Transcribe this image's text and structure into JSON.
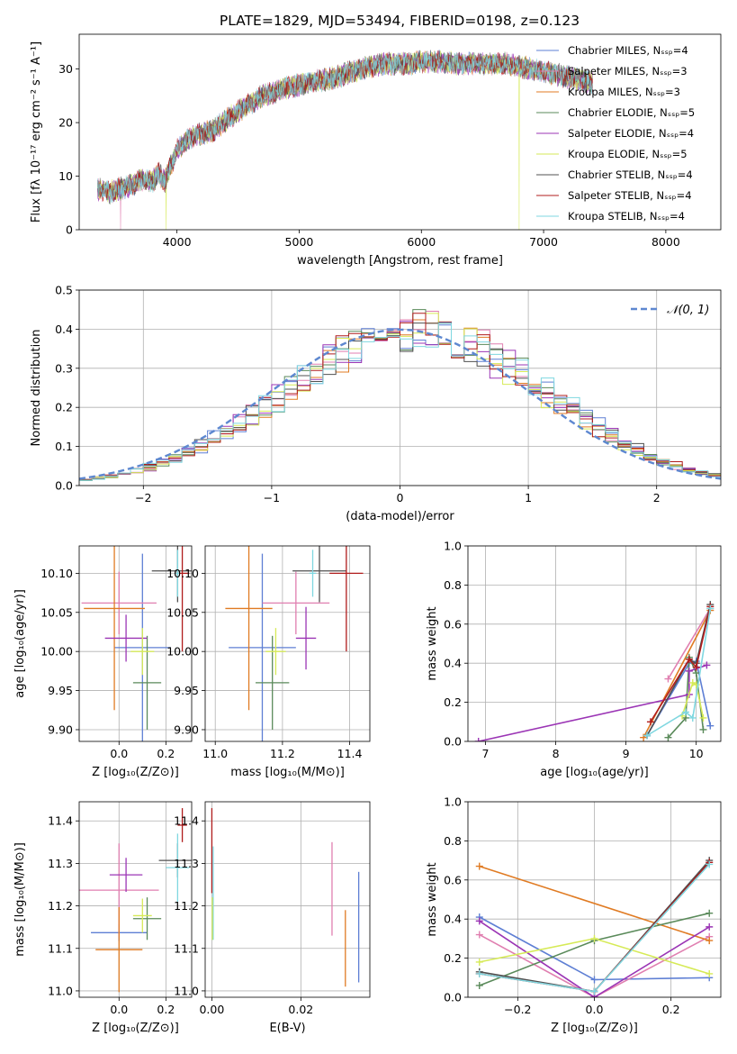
{
  "figure": {
    "title": "PLATE=1829, MJD=53494, FIBERID=0198, z=0.123"
  },
  "chart_data": [
    {
      "id": "spectrum",
      "type": "line",
      "title": "PLATE=1829, MJD=53494, FIBERID=0198, z=0.123",
      "xlabel": "wavelength [Angstrom, rest frame]",
      "ylabel": "Flux [fλ 10⁻¹⁷ erg cm⁻² s⁻¹ A⁻¹]",
      "xlim": [
        3200,
        8450
      ],
      "ylim": [
        0,
        36.5
      ],
      "xticks": [
        4000,
        5000,
        6000,
        7000,
        8000
      ],
      "yticks": [
        0,
        10,
        20,
        30
      ],
      "grid": false,
      "legend_position": "top-right",
      "series": [
        {
          "name": "Chabrier MILES, N$_{SSP}$=4",
          "color": "#5e7fd4"
        },
        {
          "name": "Salpeter MILES, N$_{SSP}$=3",
          "color": "#e07fb0"
        },
        {
          "name": "Kroupa MILES, N$_{SSP}$=3",
          "color": "#e07b23"
        },
        {
          "name": "Chabrier ELODIE, N$_{SSP}$=5",
          "color": "#5a8a5a"
        },
        {
          "name": "Salpeter ELODIE, N$_{SSP}$=4",
          "color": "#9b35b5"
        },
        {
          "name": "Kroupa ELODIE, N$_{SSP}$=5",
          "color": "#d6ea57"
        },
        {
          "name": "Chabrier STELIB, N$_{SSP}$=4",
          "color": "#505050"
        },
        {
          "name": "Salpeter STELIB, N$_{SSP}$=4",
          "color": "#b01c1c"
        },
        {
          "name": "Kroupa STELIB, N$_{SSP}$=4",
          "color": "#7fd7e0"
        }
      ],
      "continuum": {
        "x": [
          3350,
          3450,
          3550,
          3650,
          3700,
          3800,
          3850,
          3900,
          3950,
          4000,
          4100,
          4200,
          4300,
          4400,
          4500,
          4700,
          4900,
          5100,
          5300,
          5500,
          5700,
          5900,
          6100,
          6300,
          6500,
          6700,
          6900,
          7100,
          7300,
          7400
        ],
        "y": [
          7.5,
          7.0,
          7.8,
          8.5,
          9.5,
          9.0,
          10.5,
          9.0,
          12.0,
          15.0,
          17.0,
          18.0,
          18.5,
          20.5,
          22.0,
          25.0,
          26.5,
          27.5,
          28.5,
          30.0,
          31.0,
          31.0,
          31.5,
          31.0,
          31.0,
          31.0,
          30.0,
          29.0,
          28.0,
          27.5
        ]
      },
      "drops": [
        {
          "x": 3540,
          "series": "Salpeter MILES, N$_{SSP}$=3"
        },
        {
          "x": 3910,
          "series": "Kroupa ELODIE, N$_{SSP}$=5"
        },
        {
          "x": 6800,
          "series": "Kroupa ELODIE, N$_{SSP}$=5"
        },
        {
          "x": 7420,
          "series": "Kroupa MILES, N$_{SSP}$=3"
        }
      ]
    },
    {
      "id": "residuals",
      "type": "line",
      "xlabel": "(data-model)/error",
      "ylabel": "Normed distribution",
      "xlim": [
        -2.5,
        2.5
      ],
      "ylim": [
        0,
        0.5
      ],
      "xticks": [
        -2,
        -1,
        0,
        1,
        2
      ],
      "yticks": [
        0.0,
        0.1,
        0.2,
        0.3,
        0.4,
        0.5
      ],
      "grid": true,
      "legend_position": "top-right",
      "reference_curve": {
        "name": "$\\mathcal{N}(0,1)$",
        "mean": 0,
        "sigma": 1,
        "color": "#5e88d0"
      },
      "bin_width": 0.1
    },
    {
      "id": "age-vs-z",
      "type": "scatter",
      "xlabel": "Z [log₁₀(Z/Z⊙)]",
      "ylabel": "age  [log₁₀(age/yr)]",
      "xlim": [
        -0.17,
        0.31
      ],
      "ylim": [
        9.885,
        10.135
      ],
      "xticks": [
        0.0,
        0.2
      ],
      "yticks": [
        9.9,
        9.95,
        10.0,
        10.05,
        10.1
      ],
      "grid": true,
      "points": [
        {
          "x": 0.1,
          "y": 10.005,
          "xerr": 0.12,
          "yerr": 0.12,
          "color": "#5e7fd4"
        },
        {
          "x": 0.0,
          "y": 10.062,
          "xerr": 0.16,
          "yerr": 0.04,
          "color": "#e07fb0"
        },
        {
          "x": -0.02,
          "y": 10.055,
          "xerr": 0.13,
          "yerr": 0.13,
          "color": "#e07b23"
        },
        {
          "x": 0.12,
          "y": 9.96,
          "xerr": 0.06,
          "yerr": 0.06,
          "color": "#5a8a5a"
        },
        {
          "x": 0.03,
          "y": 10.017,
          "xerr": 0.09,
          "yerr": 0.03,
          "color": "#9b35b5"
        },
        {
          "x": 0.1,
          "y": 10.0,
          "xerr": 0.05,
          "yerr": 0.03,
          "color": "#d6ea57"
        },
        {
          "x": 0.25,
          "y": 10.103,
          "xerr": 0.11,
          "yerr": 0.04,
          "color": "#505050"
        },
        {
          "x": 0.27,
          "y": 10.1,
          "xerr": 0.03,
          "yerr": 0.1,
          "color": "#b01c1c"
        },
        {
          "x": 0.25,
          "y": 10.1,
          "xerr": 0.01,
          "yerr": 0.03,
          "color": "#7fd7e0"
        }
      ]
    },
    {
      "id": "age-vs-mass",
      "type": "scatter",
      "xlabel": "mass [log₁₀(M/M⊙)]",
      "ylabel": "",
      "xlim": [
        10.97,
        11.46
      ],
      "ylim": [
        9.885,
        10.135
      ],
      "xticks": [
        11.0,
        11.2,
        11.4
      ],
      "yticks": [
        9.9,
        9.95,
        10.0,
        10.05,
        10.1
      ],
      "grid": true,
      "points": [
        {
          "x": 11.14,
          "y": 10.005,
          "xerr": 0.1,
          "yerr": 0.12,
          "color": "#5e7fd4"
        },
        {
          "x": 11.24,
          "y": 10.062,
          "xerr": 0.1,
          "yerr": 0.04,
          "color": "#e07fb0"
        },
        {
          "x": 11.1,
          "y": 10.055,
          "xerr": 0.07,
          "yerr": 0.13,
          "color": "#e07b23"
        },
        {
          "x": 11.17,
          "y": 9.96,
          "xerr": 0.05,
          "yerr": 0.06,
          "color": "#5a8a5a"
        },
        {
          "x": 11.27,
          "y": 10.017,
          "xerr": 0.03,
          "yerr": 0.04,
          "color": "#9b35b5"
        },
        {
          "x": 11.18,
          "y": 10.0,
          "xerr": 0.03,
          "yerr": 0.03,
          "color": "#d6ea57"
        },
        {
          "x": 11.31,
          "y": 10.103,
          "xerr": 0.08,
          "yerr": 0.04,
          "color": "#505050"
        },
        {
          "x": 11.39,
          "y": 10.1,
          "xerr": 0.05,
          "yerr": 0.1,
          "color": "#b01c1c"
        },
        {
          "x": 11.29,
          "y": 10.1,
          "xerr": 0.01,
          "yerr": 0.03,
          "color": "#7fd7e0"
        }
      ]
    },
    {
      "id": "weight-vs-age",
      "type": "line",
      "xlabel": "age  [log₁₀(age/yr)]",
      "ylabel": "mass weight",
      "xlim": [
        6.75,
        10.35
      ],
      "ylim": [
        0.0,
        1.0
      ],
      "xticks": [
        7,
        8,
        9,
        10
      ],
      "yticks": [
        0.0,
        0.2,
        0.4,
        0.6,
        0.8,
        1.0
      ],
      "grid": true,
      "series": [
        {
          "name": "Chabrier MILES, N$_{SSP}$=4",
          "color": "#5e7fd4",
          "x": [
            9.3,
            9.9,
            10.0,
            10.2
          ],
          "y": [
            0.03,
            0.4,
            0.41,
            0.08
          ]
        },
        {
          "name": "Salpeter MILES, N$_{SSP}$=3",
          "color": "#e07fb0",
          "x": [
            9.6,
            10.2
          ],
          "y": [
            0.32,
            0.68
          ]
        },
        {
          "name": "Kroupa MILES, N$_{SSP}$=3",
          "color": "#e07b23",
          "x": [
            9.25,
            10.2
          ],
          "y": [
            0.02,
            0.67
          ]
        },
        {
          "name": "Chabrier ELODIE, N$_{SSP}$=5",
          "color": "#5a8a5a",
          "x": [
            9.6,
            9.85,
            9.9,
            10.0,
            10.1
          ],
          "y": [
            0.02,
            0.12,
            0.43,
            0.35,
            0.06
          ]
        },
        {
          "name": "Salpeter ELODIE, N$_{SSP}$=4",
          "color": "#9b35b5",
          "x": [
            6.9,
            9.9,
            9.9,
            10.15
          ],
          "y": [
            0.0,
            0.24,
            0.36,
            0.39
          ]
        },
        {
          "name": "Kroupa ELODIE, N$_{SSP}$=5",
          "color": "#d6ea57",
          "x": [
            9.8,
            9.95,
            10.0,
            10.1
          ],
          "y": [
            0.13,
            0.3,
            0.29,
            0.12
          ]
        },
        {
          "name": "Chabrier STELIB, N$_{SSP}$=4",
          "color": "#505050",
          "x": [
            9.3,
            9.9,
            10.0,
            10.2
          ],
          "y": [
            0.03,
            0.42,
            0.4,
            0.7
          ]
        },
        {
          "name": "Salpeter STELIB, N$_{SSP}$=4",
          "color": "#b01c1c",
          "x": [
            9.35,
            9.9,
            10.0,
            10.2
          ],
          "y": [
            0.1,
            0.42,
            0.38,
            0.69
          ]
        },
        {
          "name": "Kroupa STELIB, N$_{SSP}$=4",
          "color": "#7fd7e0",
          "x": [
            9.3,
            9.85,
            9.95,
            10.2
          ],
          "y": [
            0.03,
            0.15,
            0.12,
            0.68
          ]
        }
      ]
    },
    {
      "id": "mass-vs-z",
      "type": "scatter",
      "xlabel": "Z [log₁₀(Z/Z⊙)]",
      "ylabel": "mass [log₁₀(M/M⊙)]",
      "xlim": [
        -0.17,
        0.31
      ],
      "ylim": [
        10.985,
        11.445
      ],
      "xticks": [
        0.0,
        0.2
      ],
      "yticks": [
        11.0,
        11.1,
        11.2,
        11.3,
        11.4
      ],
      "grid": true,
      "points": [
        {
          "x": 0.0,
          "y": 11.137,
          "xerr": 0.12,
          "yerr": 0.02,
          "color": "#5e7fd4"
        },
        {
          "x": 0.0,
          "y": 11.237,
          "xerr": 0.17,
          "yerr": 0.11,
          "color": "#e07fb0"
        },
        {
          "x": 0.0,
          "y": 11.097,
          "xerr": 0.1,
          "yerr": 0.1,
          "color": "#e07b23"
        },
        {
          "x": 0.12,
          "y": 11.17,
          "xerr": 0.06,
          "yerr": 0.05,
          "color": "#5a8a5a"
        },
        {
          "x": 0.03,
          "y": 11.273,
          "xerr": 0.07,
          "yerr": 0.04,
          "color": "#9b35b5"
        },
        {
          "x": 0.1,
          "y": 11.177,
          "xerr": 0.04,
          "yerr": 0.04,
          "color": "#d6ea57"
        },
        {
          "x": 0.25,
          "y": 11.307,
          "xerr": 0.08,
          "yerr": 0.04,
          "color": "#505050"
        },
        {
          "x": 0.27,
          "y": 11.39,
          "xerr": 0.02,
          "yerr": 0.04,
          "color": "#b01c1c"
        },
        {
          "x": 0.25,
          "y": 11.29,
          "xerr": 0.05,
          "yerr": 0.08,
          "color": "#7fd7e0"
        }
      ]
    },
    {
      "id": "mass-vs-ebv",
      "type": "scatter",
      "xlabel": "E(B-V)",
      "ylabel": "",
      "xlim": [
        -0.0015,
        0.0355
      ],
      "ylim": [
        10.985,
        11.445
      ],
      "xticks": [
        0.0,
        0.02
      ],
      "yticks": [
        11.0,
        11.1,
        11.2,
        11.3,
        11.4
      ],
      "grid": true,
      "points": [
        {
          "x": 0.0,
          "y": 11.33,
          "xerr": 0,
          "yerr": 0.1,
          "color": "#b01c1c"
        },
        {
          "x": 0.0003,
          "y": 11.23,
          "xerr": 0,
          "yerr": 0.11,
          "color": "#7fd7e0"
        },
        {
          "x": 0.0001,
          "y": 11.17,
          "xerr": 0,
          "yerr": 0.05,
          "color": "#d6ea57"
        },
        {
          "x": 0.027,
          "y": 11.24,
          "xerr": 0,
          "yerr": 0.11,
          "color": "#e07fb0"
        },
        {
          "x": 0.03,
          "y": 11.1,
          "xerr": 0,
          "yerr": 0.09,
          "color": "#e07b23"
        },
        {
          "x": 0.033,
          "y": 11.15,
          "xerr": 0,
          "yerr": 0.13,
          "color": "#5e7fd4"
        }
      ]
    },
    {
      "id": "weight-vs-z",
      "type": "line",
      "xlabel": "Z [log₁₀(Z/Z⊙)]",
      "ylabel": "mass weight",
      "xlim": [
        -0.33,
        0.33
      ],
      "ylim": [
        0.0,
        1.0
      ],
      "xticks": [
        -0.2,
        0.0,
        0.2
      ],
      "yticks": [
        0.0,
        0.2,
        0.4,
        0.6,
        0.8,
        1.0
      ],
      "grid": true,
      "series": [
        {
          "name": "Chabrier MILES, N$_{SSP}$=4",
          "color": "#5e7fd4",
          "x": [
            -0.3,
            0.0,
            0.3
          ],
          "y": [
            0.41,
            0.09,
            0.1
          ]
        },
        {
          "name": "Salpeter MILES, N$_{SSP}$=3",
          "color": "#e07fb0",
          "x": [
            -0.3,
            0.0,
            0.3
          ],
          "y": [
            0.32,
            0.0,
            0.31
          ]
        },
        {
          "name": "Kroupa MILES, N$_{SSP}$=3",
          "color": "#e07b23",
          "x": [
            -0.3,
            0.3
          ],
          "y": [
            0.67,
            0.29
          ]
        },
        {
          "name": "Chabrier ELODIE, N$_{SSP}$=5",
          "color": "#5a8a5a",
          "x": [
            -0.3,
            0.0,
            0.3
          ],
          "y": [
            0.06,
            0.29,
            0.43
          ]
        },
        {
          "name": "Salpeter ELODIE, N$_{SSP}$=4",
          "color": "#9b35b5",
          "x": [
            -0.3,
            0.0,
            0.3
          ],
          "y": [
            0.39,
            0.0,
            0.36
          ]
        },
        {
          "name": "Kroupa ELODIE, N$_{SSP}$=5",
          "color": "#d6ea57",
          "x": [
            -0.3,
            0.0,
            0.3
          ],
          "y": [
            0.18,
            0.3,
            0.12
          ]
        },
        {
          "name": "Chabrier STELIB, N$_{SSP}$=4",
          "color": "#505050",
          "x": [
            -0.3,
            0.0,
            0.3
          ],
          "y": [
            0.13,
            0.03,
            0.7
          ]
        },
        {
          "name": "Salpeter STELIB, N$_{SSP}$=4",
          "color": "#b01c1c",
          "x": [
            -0.3,
            0.0,
            0.3
          ],
          "y": [
            0.12,
            0.03,
            0.69
          ]
        },
        {
          "name": "Kroupa STELIB, N$_{SSP}$=4",
          "color": "#7fd7e0",
          "x": [
            -0.3,
            0.0,
            0.3
          ],
          "y": [
            0.12,
            0.03,
            0.68
          ]
        }
      ]
    }
  ]
}
